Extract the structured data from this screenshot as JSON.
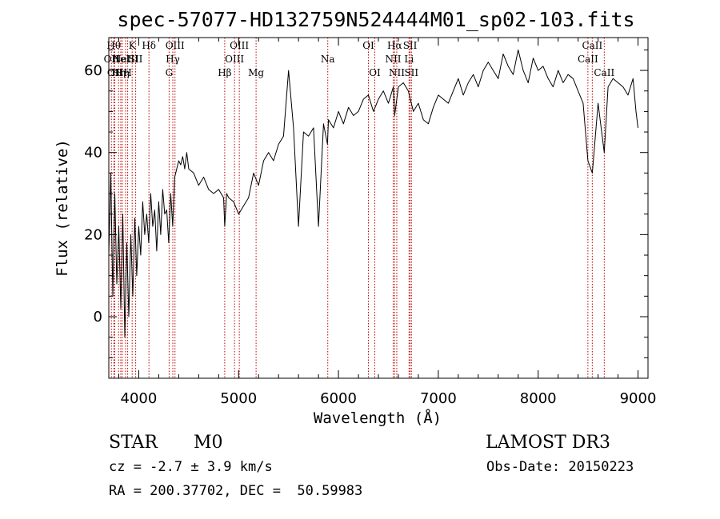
{
  "chart_data": {
    "type": "line",
    "title": "spec-57077-HD132759N524444M01_sp02-103.fits",
    "xlabel": "Wavelength (Å)",
    "ylabel": "Flux (relative)",
    "xlim": [
      3700,
      9100
    ],
    "ylim": [
      -15,
      68
    ],
    "xticks": [
      4000,
      5000,
      6000,
      7000,
      8000,
      9000
    ],
    "yticks": [
      0,
      20,
      40,
      60
    ],
    "grid": false,
    "series": [
      {
        "color": "#000000",
        "x": [
          3700,
          3720,
          3740,
          3760,
          3780,
          3800,
          3820,
          3840,
          3860,
          3880,
          3900,
          3920,
          3940,
          3960,
          3980,
          4000,
          4020,
          4040,
          4060,
          4080,
          4100,
          4120,
          4140,
          4160,
          4180,
          4200,
          4220,
          4240,
          4260,
          4280,
          4300,
          4320,
          4340,
          4360,
          4380,
          4400,
          4420,
          4440,
          4460,
          4480,
          4500,
          4550,
          4600,
          4650,
          4700,
          4750,
          4800,
          4850,
          4861,
          4880,
          4900,
          4950,
          5000,
          5050,
          5100,
          5150,
          5200,
          5250,
          5300,
          5350,
          5400,
          5450,
          5500,
          5550,
          5600,
          5650,
          5700,
          5750,
          5800,
          5850,
          5890,
          5900,
          5950,
          6000,
          6050,
          6100,
          6150,
          6200,
          6250,
          6300,
          6350,
          6400,
          6450,
          6500,
          6550,
          6563,
          6600,
          6650,
          6700,
          6750,
          6800,
          6850,
          6900,
          6950,
          7000,
          7050,
          7100,
          7150,
          7200,
          7250,
          7300,
          7350,
          7400,
          7450,
          7500,
          7550,
          7600,
          7650,
          7700,
          7750,
          7800,
          7850,
          7900,
          7950,
          8000,
          8050,
          8100,
          8150,
          8200,
          8250,
          8300,
          8350,
          8400,
          8450,
          8498,
          8542,
          8600,
          8662,
          8700,
          8750,
          8800,
          8850,
          8900,
          8950,
          8980,
          9000
        ],
        "y": [
          15,
          35,
          5,
          30,
          8,
          22,
          2,
          25,
          -5,
          18,
          0,
          20,
          5,
          24,
          10,
          22,
          15,
          28,
          20,
          25,
          18,
          30,
          22,
          26,
          16,
          28,
          20,
          31,
          25,
          26,
          18,
          30,
          22,
          34,
          36,
          38,
          37,
          39,
          36,
          40,
          36,
          35,
          32,
          34,
          31,
          30,
          31,
          29,
          22,
          30,
          29,
          28,
          25,
          27,
          29,
          35,
          32,
          38,
          40,
          38,
          42,
          44,
          60,
          46,
          22,
          45,
          44,
          46,
          22,
          47,
          42,
          48,
          46,
          50,
          47,
          51,
          49,
          50,
          53,
          54,
          50,
          53,
          55,
          52,
          56,
          49,
          56,
          57,
          55,
          50,
          52,
          48,
          47,
          51,
          54,
          53,
          52,
          55,
          58,
          54,
          57,
          59,
          56,
          60,
          62,
          60,
          58,
          64,
          61,
          59,
          65,
          60,
          57,
          63,
          60,
          61,
          58,
          56,
          60,
          57,
          59,
          58,
          55,
          52,
          38,
          35,
          52,
          40,
          56,
          58,
          57,
          56,
          54,
          58,
          50,
          46
        ]
      }
    ],
    "spectral_lines": [
      {
        "x": 3726,
        "label": "OII",
        "row": 1
      },
      {
        "x": 3750,
        "label": "Hθ",
        "row": 0
      },
      {
        "x": 3760,
        "label": "OII",
        "row": 2
      },
      {
        "x": 3798,
        "label": "Hη",
        "row": 2
      },
      {
        "x": 3820,
        "label": "HeI",
        "row": 1
      },
      {
        "x": 3835,
        "label": "Hη",
        "row": 2
      },
      {
        "x": 3868,
        "label": "NeIII",
        "row": 1
      },
      {
        "x": 3889,
        "label": "H",
        "row": 2
      },
      {
        "x": 3934,
        "label": "K",
        "row": 0
      },
      {
        "x": 3969,
        "label": "SII",
        "row": 1
      },
      {
        "x": 4102,
        "label": "Hδ",
        "row": 0
      },
      {
        "x": 4304,
        "label": "G",
        "row": 2
      },
      {
        "x": 4341,
        "label": "Hγ",
        "row": 1
      },
      {
        "x": 4363,
        "label": "OIII",
        "row": 0
      },
      {
        "x": 4861,
        "label": "Hβ",
        "row": 2
      },
      {
        "x": 4959,
        "label": "OIII",
        "row": 1
      },
      {
        "x": 5007,
        "label": "OIII",
        "row": 0
      },
      {
        "x": 5175,
        "label": "Mg",
        "row": 2
      },
      {
        "x": 5893,
        "label": "Na",
        "row": 1
      },
      {
        "x": 6300,
        "label": "OI",
        "row": 0
      },
      {
        "x": 6364,
        "label": "OI",
        "row": 2
      },
      {
        "x": 6548,
        "label": "NII",
        "row": 1
      },
      {
        "x": 6563,
        "label": "Hα",
        "row": 0
      },
      {
        "x": 6584,
        "label": "NII",
        "row": 2
      },
      {
        "x": 6707,
        "label": "Li",
        "row": 1
      },
      {
        "x": 6717,
        "label": "SII",
        "row": 0
      },
      {
        "x": 6731,
        "label": "SII",
        "row": 2
      },
      {
        "x": 8498,
        "label": "CaII",
        "row": 1
      },
      {
        "x": 8542,
        "label": "CaII",
        "row": 0
      },
      {
        "x": 8662,
        "label": "CaII",
        "row": 2
      }
    ]
  },
  "info": {
    "class_label": "STAR",
    "subclass": "M0",
    "survey": "LAMOST DR3",
    "cz": "cz = -2.7 ± 3.9 km/s",
    "obs_date": "Obs-Date: 20150223",
    "coords": "RA = 200.37702, DEC =  50.59983"
  }
}
